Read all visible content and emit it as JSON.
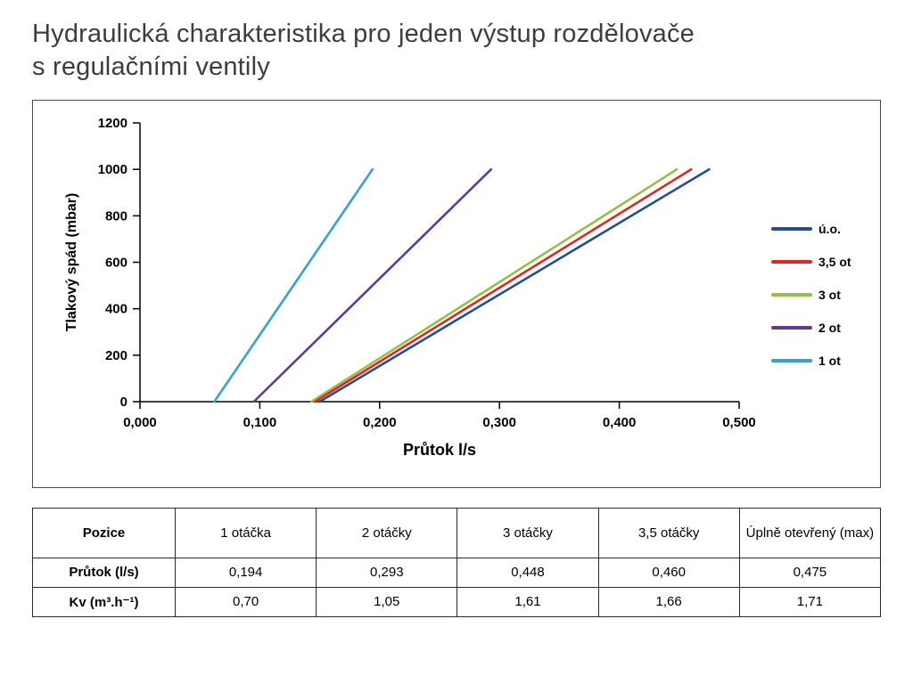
{
  "title": {
    "line1": "Hydraulická charakteristika pro jeden výstup rozdělovače",
    "line2": "s regulačními ventily"
  },
  "chart_data": {
    "type": "line",
    "title": "",
    "xlabel": "Průtok l/s",
    "ylabel": "Tlakový spád (mbar)",
    "xlim": [
      0,
      0.5
    ],
    "ylim": [
      0,
      1200
    ],
    "grid": false,
    "legend_position": "right",
    "xtick_labels": [
      "0,000",
      "0,100",
      "0,200",
      "0,300",
      "0,400",
      "0,500"
    ],
    "xtick_values": [
      0,
      0.1,
      0.2,
      0.3,
      0.4,
      0.5
    ],
    "ytick_values": [
      0,
      200,
      400,
      600,
      800,
      1000,
      1200
    ],
    "series": [
      {
        "name": "ú.o.",
        "color": "#1f4e9e",
        "points": [
          [
            0.15,
            0
          ],
          [
            0.475,
            1000
          ]
        ]
      },
      {
        "name": "3,5 ot",
        "color": "#e52421",
        "points": [
          [
            0.146,
            0
          ],
          [
            0.46,
            1000
          ]
        ]
      },
      {
        "name": "3 ot",
        "color": "#95c13d",
        "points": [
          [
            0.143,
            0
          ],
          [
            0.448,
            1000
          ]
        ]
      },
      {
        "name": "2 ot",
        "color": "#5f3a94",
        "points": [
          [
            0.095,
            0
          ],
          [
            0.293,
            1000
          ]
        ]
      },
      {
        "name": "1 ot",
        "color": "#2fa3dc",
        "points": [
          [
            0.062,
            0
          ],
          [
            0.194,
            1000
          ]
        ]
      }
    ]
  },
  "table": {
    "columns": [
      "Pozice",
      "1 otáčka",
      "2 otáčky",
      "3 otáčky",
      "3,5 otáčky",
      "Úplně otevřený (max)"
    ],
    "rows": [
      {
        "label": "Průtok (l/s)",
        "values": [
          "0,194",
          "0,293",
          "0,448",
          "0,460",
          "0,475"
        ]
      },
      {
        "label": "Kv (m³.h⁻¹)",
        "values": [
          "0,70",
          "1,05",
          "1,61",
          "1,66",
          "1,71"
        ]
      }
    ]
  }
}
